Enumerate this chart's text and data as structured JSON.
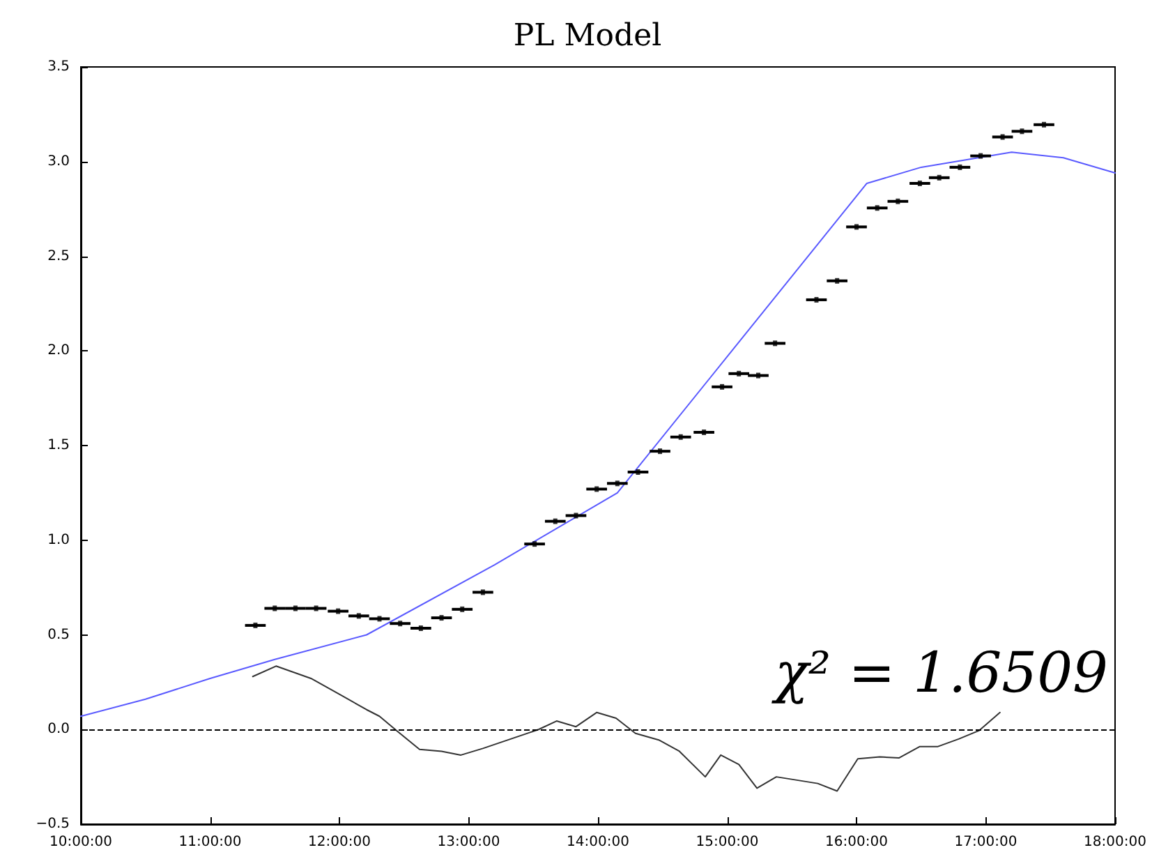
{
  "chart_data": {
    "type": "line",
    "title": "PL Model",
    "xlim": [
      10,
      18
    ],
    "xticks": [
      {
        "value": 10,
        "label": "10:00:00"
      },
      {
        "value": 11,
        "label": "11:00:00"
      },
      {
        "value": 12,
        "label": "12:00:00"
      },
      {
        "value": 13,
        "label": "13:00:00"
      },
      {
        "value": 14,
        "label": "14:00:00"
      },
      {
        "value": 15,
        "label": "15:00:00"
      },
      {
        "value": 16,
        "label": "16:00:00"
      },
      {
        "value": 17,
        "label": "17:00:00"
      },
      {
        "value": 18,
        "label": "18:00:00"
      }
    ],
    "ylim": [
      -0.5,
      3.5
    ],
    "yticks": [
      {
        "value": -0.5,
        "label": "−0.5"
      },
      {
        "value": 0,
        "label": "0.0"
      },
      {
        "value": 0.5,
        "label": "0.5"
      },
      {
        "value": 1,
        "label": "1.0"
      },
      {
        "value": 1.5,
        "label": "1.5"
      },
      {
        "value": 2,
        "label": "2.0"
      },
      {
        "value": 2.5,
        "label": "2.5"
      },
      {
        "value": 3,
        "label": "3.0"
      },
      {
        "value": 3.5,
        "label": "3.5"
      }
    ],
    "grid": false,
    "line_style": "solid",
    "ref_lines": [
      {
        "axis": "y",
        "value": 0,
        "color": "#000000",
        "line_style": "dashed"
      }
    ],
    "annotations": [
      "χ² = 1.6509"
    ],
    "series": [
      {
        "type": "scatter",
        "color": "#000000",
        "x": [
          11.35,
          11.5,
          11.66,
          11.82,
          11.99,
          12.15,
          12.31,
          12.47,
          12.63,
          12.79,
          12.95,
          13.11,
          13.51,
          13.67,
          13.83,
          13.99,
          14.15,
          14.31,
          14.48,
          14.64,
          14.82,
          14.96,
          15.09,
          15.24,
          15.37,
          15.69,
          15.85,
          16.0,
          16.16,
          16.32,
          16.49,
          16.64,
          16.8,
          16.96,
          17.13,
          17.28,
          17.45
        ],
        "values": [
          0.55,
          0.64,
          0.64,
          0.64,
          0.625,
          0.6,
          0.585,
          0.56,
          0.535,
          0.59,
          0.635,
          0.725,
          0.98,
          1.1,
          1.13,
          1.27,
          1.3,
          1.36,
          1.47,
          1.545,
          1.57,
          1.81,
          1.88,
          1.87,
          2.04,
          2.27,
          2.37,
          2.655,
          2.755,
          2.79,
          2.885,
          2.915,
          2.97,
          3.03,
          3.13,
          3.16,
          3.195
        ],
        "xerrors": [
          0.08,
          0.08,
          0.08,
          0.08,
          0.08,
          0.08,
          0.08,
          0.08,
          0.08,
          0.08,
          0.08,
          0.08,
          0.08,
          0.08,
          0.08,
          0.08,
          0.08,
          0.08,
          0.08,
          0.08,
          0.08,
          0.08,
          0.08,
          0.08,
          0.08,
          0.08,
          0.08,
          0.08,
          0.08,
          0.08,
          0.08,
          0.08,
          0.08,
          0.08,
          0.08,
          0.08,
          0.08
        ]
      },
      {
        "type": "line",
        "color": "#5a5aff",
        "x": [
          10,
          10.5,
          11,
          11.5,
          12.21,
          13.2,
          14.15,
          16.08,
          16.5,
          17.2,
          17.6,
          18
        ],
        "values": [
          0.07,
          0.16,
          0.27,
          0.37,
          0.5,
          0.87,
          1.25,
          2.885,
          2.97,
          3.05,
          3.02,
          2.94
        ]
      },
      {
        "type": "line",
        "color": "#333333",
        "x": [
          11.33,
          11.51,
          11.78,
          11.99,
          12.21,
          12.31,
          12.45,
          12.62,
          12.79,
          12.94,
          13.11,
          13.54,
          13.68,
          13.83,
          13.99,
          14.14,
          14.29,
          14.47,
          14.63,
          14.83,
          14.95,
          15.09,
          15.23,
          15.38,
          15.7,
          15.85,
          16.01,
          16.18,
          16.33,
          16.49,
          16.63,
          16.79,
          16.95,
          17.11
        ],
        "values": [
          0.28,
          0.335,
          0.27,
          0.19,
          0.105,
          0.07,
          -0.01,
          -0.105,
          -0.115,
          -0.135,
          -0.1,
          0.0,
          0.045,
          0.015,
          0.09,
          0.06,
          -0.02,
          -0.055,
          -0.115,
          -0.25,
          -0.135,
          -0.185,
          -0.31,
          -0.25,
          -0.285,
          -0.325,
          -0.155,
          -0.145,
          -0.15,
          -0.09,
          -0.09,
          -0.05,
          -0.005,
          0.09
        ]
      }
    ]
  }
}
